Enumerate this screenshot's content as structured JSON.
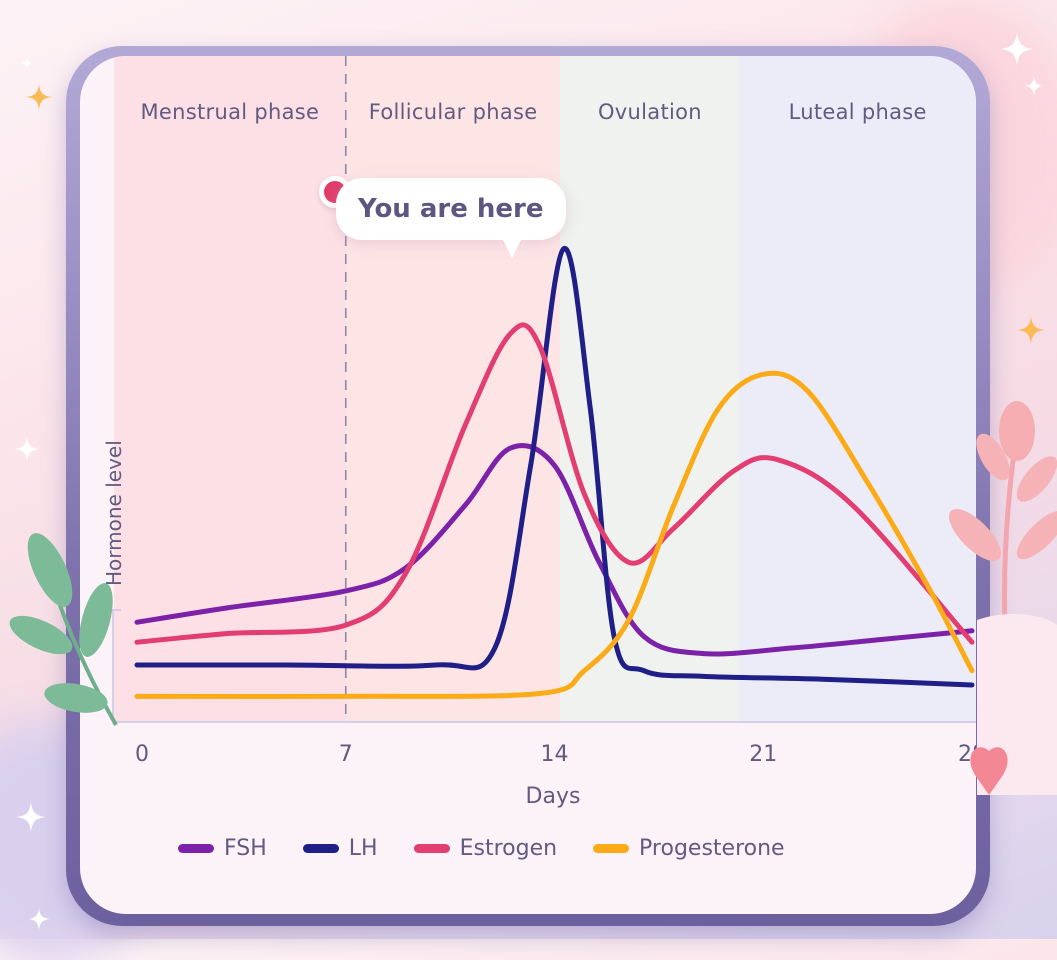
{
  "phases": [
    {
      "label": "Menstrual phase",
      "start_day": 0,
      "end_day": 7,
      "color": "#fde0e6"
    },
    {
      "label": "Follicular phase",
      "start_day": 7,
      "end_day": 14.2,
      "color": "#fde5e5"
    },
    {
      "label": "Ovulation",
      "start_day": 14.2,
      "end_day": 20.2,
      "color": "#eff2ee"
    },
    {
      "label": "Luteal phase",
      "start_day": 20.2,
      "end_day": 28,
      "color": "#ecebf8"
    }
  ],
  "marker": {
    "label": "You are here",
    "day": 7,
    "color": "#e13b6b"
  },
  "chart_data": {
    "type": "line",
    "title": "",
    "xlabel": "Days",
    "ylabel": "Hormone level",
    "xlim": [
      0,
      28
    ],
    "ylim": [
      0,
      100
    ],
    "x_ticks": [
      0,
      7,
      14,
      21,
      28
    ],
    "y_ticks": [],
    "grid": false,
    "legend_position": "bottom",
    "annotations": [
      "You are here (day 7)",
      "Menstrual phase",
      "Follicular phase",
      "Ovulation",
      "Luteal phase"
    ],
    "series": [
      {
        "name": "FSH",
        "color": "#7b22a8",
        "x": [
          0,
          3,
          7,
          9,
          11,
          12.5,
          14,
          15.5,
          17,
          19,
          22,
          25,
          28
        ],
        "values": [
          17.5,
          20,
          23,
          27,
          38,
          48,
          45,
          28,
          15,
          12,
          13,
          14.5,
          16
        ]
      },
      {
        "name": "LH",
        "color": "#1f1f87",
        "x": [
          0,
          5,
          10,
          12,
          13.2,
          14.3,
          15.2,
          16,
          17,
          19,
          23,
          28
        ],
        "values": [
          10,
          10,
          10,
          13,
          45,
          83,
          55,
          15,
          9,
          8,
          7.5,
          6.5
        ]
      },
      {
        "name": "Estrogen",
        "color": "#e23e72",
        "x": [
          0,
          3,
          7,
          9,
          11,
          12.5,
          13.5,
          15,
          16.5,
          18,
          20,
          21.5,
          24,
          28
        ],
        "values": [
          14,
          15.5,
          17,
          26,
          52,
          68,
          66,
          40,
          28,
          34,
          44,
          46,
          38,
          14
        ]
      },
      {
        "name": "Progesterone",
        "color": "#fbab17",
        "x": [
          0,
          7,
          13.5,
          15,
          16.5,
          18,
          19.5,
          21,
          22.5,
          24.5,
          26.5,
          28
        ],
        "values": [
          4.5,
          4.5,
          5,
          9,
          18,
          38,
          55,
          61,
          58,
          42,
          24,
          9
        ]
      }
    ]
  },
  "legend": [
    {
      "label": "FSH",
      "color": "#7b22a8"
    },
    {
      "label": "LH",
      "color": "#1f1f87"
    },
    {
      "label": "Estrogen",
      "color": "#e23e72"
    },
    {
      "label": "Progesterone",
      "color": "#fbab17"
    }
  ]
}
